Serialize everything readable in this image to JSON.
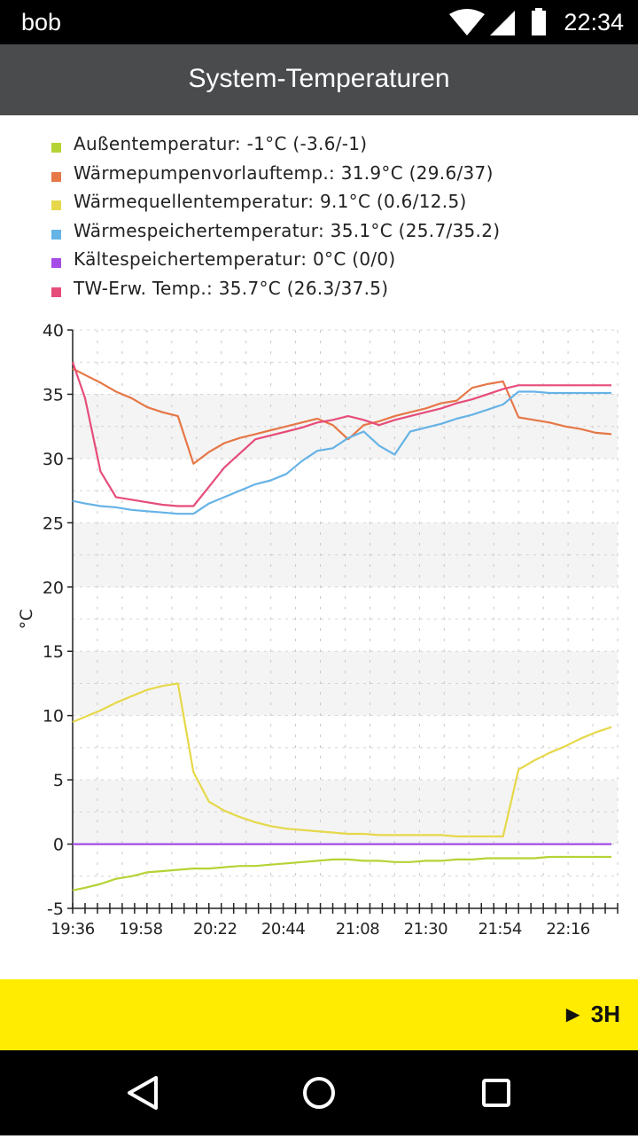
{
  "status_bar": {
    "user": "bob",
    "time": "22:34"
  },
  "header": {
    "title": "System-Temperaturen"
  },
  "bottom_bar": {
    "period_label": "► 3H"
  },
  "colors": {
    "aussen": "#b5d335",
    "vorlauf": "#e67747",
    "quelle": "#e6d84a",
    "speicher": "#66b3e6",
    "kaelte": "#a64ce6",
    "tw": "#e64c7a"
  },
  "chart_data": {
    "type": "line",
    "ylabel": "°C",
    "ylim": [
      -5,
      40
    ],
    "yticks": [
      -5,
      0,
      5,
      10,
      15,
      20,
      25,
      30,
      35,
      40
    ],
    "xlim": [
      "19:36",
      "22:32"
    ],
    "xtick_labels": [
      "19:36",
      "19:58",
      "20:22",
      "20:44",
      "21:08",
      "21:30",
      "21:54",
      "22:16"
    ],
    "x": [
      "19:36",
      "19:40",
      "19:45",
      "19:50",
      "19:55",
      "20:00",
      "20:05",
      "20:10",
      "20:15",
      "20:20",
      "20:25",
      "20:30",
      "20:35",
      "20:40",
      "20:45",
      "20:50",
      "20:55",
      "21:00",
      "21:05",
      "21:10",
      "21:15",
      "21:20",
      "21:25",
      "21:30",
      "21:35",
      "21:40",
      "21:45",
      "21:50",
      "21:55",
      "22:00",
      "22:05",
      "22:10",
      "22:15",
      "22:20",
      "22:25",
      "22:30"
    ],
    "series": [
      {
        "name": "Außentemperatur: -1°C (-3.6/-1)",
        "color_key": "aussen",
        "values": [
          -3.6,
          -3.4,
          -3.1,
          -2.7,
          -2.5,
          -2.2,
          -2.1,
          -2.0,
          -1.9,
          -1.9,
          -1.8,
          -1.7,
          -1.7,
          -1.6,
          -1.5,
          -1.4,
          -1.3,
          -1.2,
          -1.2,
          -1.3,
          -1.3,
          -1.4,
          -1.4,
          -1.3,
          -1.3,
          -1.2,
          -1.2,
          -1.1,
          -1.1,
          -1.1,
          -1.1,
          -1.0,
          -1.0,
          -1.0,
          -1.0,
          -1.0
        ]
      },
      {
        "name": "Wärmepumpenvorlauftemp.: 31.9°C (29.6/37)",
        "color_key": "vorlauf",
        "values": [
          37.0,
          36.5,
          35.9,
          35.2,
          34.7,
          34.0,
          33.6,
          33.3,
          29.6,
          30.5,
          31.2,
          31.6,
          31.9,
          32.2,
          32.5,
          32.8,
          33.1,
          32.6,
          31.5,
          32.6,
          32.9,
          33.3,
          33.6,
          33.9,
          34.3,
          34.5,
          35.5,
          35.8,
          36.0,
          33.2,
          33.0,
          32.8,
          32.5,
          32.3,
          32.0,
          31.9
        ]
      },
      {
        "name": "Wärmequellentemperatur: 9.1°C (0.6/12.5)",
        "color_key": "quelle",
        "values": [
          9.5,
          9.9,
          10.4,
          11.0,
          11.5,
          12.0,
          12.3,
          12.5,
          5.6,
          3.3,
          2.6,
          2.1,
          1.7,
          1.4,
          1.2,
          1.1,
          1.0,
          0.9,
          0.8,
          0.8,
          0.7,
          0.7,
          0.7,
          0.7,
          0.7,
          0.6,
          0.6,
          0.6,
          0.6,
          5.8,
          6.5,
          7.1,
          7.6,
          8.2,
          8.7,
          9.1
        ]
      },
      {
        "name": "Wärmespeichertemperatur: 35.1°C (25.7/35.2)",
        "color_key": "speicher",
        "values": [
          26.7,
          26.5,
          26.3,
          26.2,
          26.0,
          25.9,
          25.8,
          25.7,
          25.7,
          26.5,
          27.0,
          27.5,
          28.0,
          28.3,
          28.8,
          29.8,
          30.6,
          30.8,
          31.6,
          32.1,
          31.0,
          30.3,
          32.1,
          32.4,
          32.7,
          33.1,
          33.4,
          33.8,
          34.2,
          35.2,
          35.2,
          35.1,
          35.1,
          35.1,
          35.1,
          35.1
        ]
      },
      {
        "name": "Kältespeichertemperatur: 0°C (0/0)",
        "color_key": "kaelte",
        "values": [
          0,
          0,
          0,
          0,
          0,
          0,
          0,
          0,
          0,
          0,
          0,
          0,
          0,
          0,
          0,
          0,
          0,
          0,
          0,
          0,
          0,
          0,
          0,
          0,
          0,
          0,
          0,
          0,
          0,
          0,
          0,
          0,
          0,
          0,
          0,
          0
        ]
      },
      {
        "name": "TW-Erw. Temp.: 35.7°C (26.3/37.5)",
        "color_key": "tw",
        "values": [
          37.5,
          34.7,
          29.0,
          27.0,
          26.8,
          26.6,
          26.4,
          26.3,
          26.3,
          27.8,
          29.3,
          30.4,
          31.5,
          31.8,
          32.1,
          32.4,
          32.8,
          33.0,
          33.3,
          33.0,
          32.6,
          33.0,
          33.3,
          33.6,
          33.9,
          34.3,
          34.6,
          35.0,
          35.4,
          35.7,
          35.7,
          35.7,
          35.7,
          35.7,
          35.7,
          35.7
        ]
      }
    ]
  }
}
